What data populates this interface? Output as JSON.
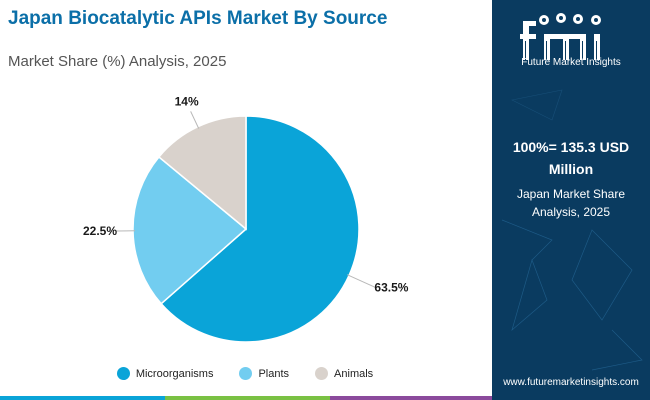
{
  "header": {
    "title": "Japan Biocatalytic APIs Market By Source",
    "subtitle": "Market Share (%) Analysis, 2025"
  },
  "chart_data": {
    "type": "pie",
    "categories": [
      "Microorganisms",
      "Plants",
      "Animals"
    ],
    "values": [
      63.5,
      22.5,
      14
    ],
    "value_labels": [
      "63.5%",
      "22.5%",
      "14%"
    ],
    "colors": [
      "#0aa4d8",
      "#72cdf0",
      "#d9d2cc"
    ],
    "start_angle_deg": 0,
    "direction": "clockwise",
    "legend_position": "bottom"
  },
  "sidebar": {
    "logo_text": "Future Market Insights",
    "total_label": "100%= 135.3 USD Million",
    "description": "Japan Market Share Analysis, 2025",
    "website": "www.futuremarketinsights.com"
  },
  "colors": {
    "title": "#0b6fa8",
    "panel_background": "#0a3b60",
    "bottom_bar": [
      "#0aa4d8",
      "#7ac143",
      "#8b4a9c",
      "#0a3b60"
    ]
  }
}
